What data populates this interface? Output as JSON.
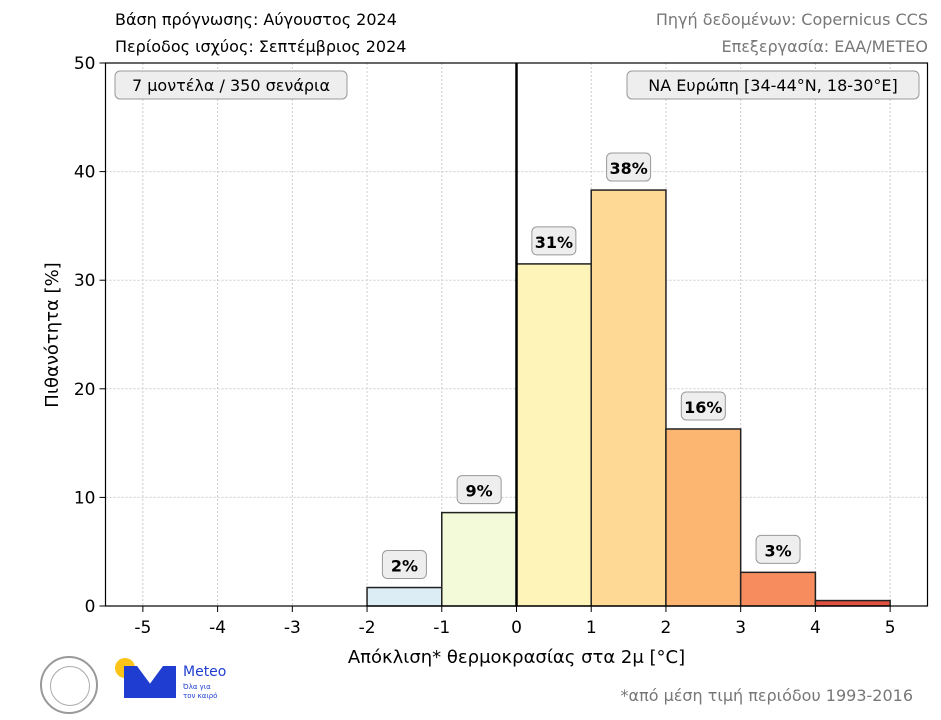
{
  "header": {
    "forecast_base": "Βάση πρόγνωσης: Αύγουστος 2024",
    "valid_period": "Περίοδος ισχύος: Σεπτέμβριος 2024",
    "source": "Πηγή δεδομένων: Copernicus CCS",
    "processing": "Επεξεργασία: ΕΑΑ/METEO"
  },
  "footer": {
    "note": "*από μέση τιμή περιόδου 1993-2016",
    "logo_noa": "National Observatory of Athens",
    "logo_meteo": "Meteo",
    "logo_meteo_tagline": "Όλα για τον καιρό"
  },
  "chart_data": {
    "type": "bar",
    "xlabel": "Απόκλιση* θερμοκρασίας στα 2μ [°C]",
    "ylabel": "Πιθανότητα [%]",
    "xlim": [
      -5.5,
      5.5
    ],
    "ylim": [
      0,
      50
    ],
    "xticks": [
      -5,
      -4,
      -3,
      -2,
      -1,
      0,
      1,
      2,
      3,
      4,
      5
    ],
    "yticks": [
      0,
      10,
      20,
      30,
      40,
      50
    ],
    "grid": true,
    "annotation_left": "7 μοντέλα / 350 σενάρια",
    "annotation_right": "ΝΑ Ευρώπη [34-44°N, 18-30°E]",
    "bins": [
      {
        "from": -2,
        "to": -1,
        "value": 1.7,
        "label": "2%",
        "color": "#dcedf5"
      },
      {
        "from": -1,
        "to": 0,
        "value": 8.6,
        "label": "9%",
        "color": "#f3fad9"
      },
      {
        "from": 0,
        "to": 1,
        "value": 31.5,
        "label": "31%",
        "color": "#fef3b8"
      },
      {
        "from": 1,
        "to": 2,
        "value": 38.3,
        "label": "38%",
        "color": "#fdd995"
      },
      {
        "from": 2,
        "to": 3,
        "value": 16.3,
        "label": "16%",
        "color": "#fdb671"
      },
      {
        "from": 3,
        "to": 4,
        "value": 3.1,
        "label": "3%",
        "color": "#f78c5e"
      },
      {
        "from": 4,
        "to": 5,
        "value": 0.5,
        "label": "",
        "color": "#e0513f"
      }
    ]
  }
}
